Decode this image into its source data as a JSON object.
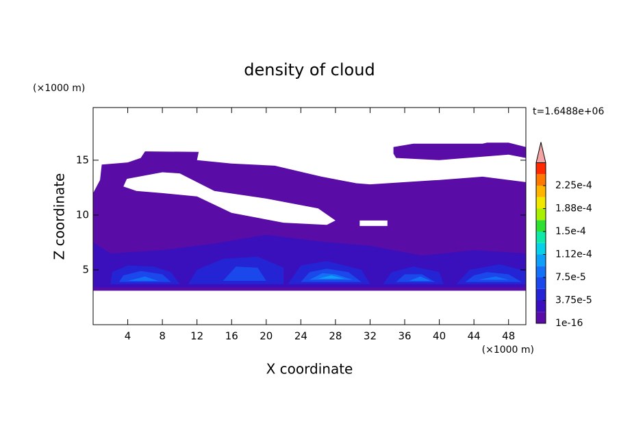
{
  "chart_data": {
    "type": "contour",
    "title": "density of cloud",
    "xlabel": "X coordinate",
    "ylabel": "Z coordinate",
    "x_unit": "(×1000 m)",
    "y_unit": "(×1000 m)",
    "annotation": "t=1.6488e+06",
    "xlim": [
      0,
      50
    ],
    "ylim": [
      0,
      19.8
    ],
    "xticks": [
      4,
      8,
      12,
      16,
      20,
      24,
      28,
      32,
      36,
      40,
      44,
      48
    ],
    "yticks": [
      5,
      10,
      15
    ],
    "colorbar": {
      "clim": [
        1e-16,
        0.0002625
      ],
      "colors": [
        "#5a0ca6",
        "#3a10bc",
        "#2424d4",
        "#1a48ea",
        "#1470f6",
        "#0ea0f8",
        "#08d0e8",
        "#10e8a8",
        "#30e030",
        "#a8f000",
        "#f0e800",
        "#ffb400",
        "#ff7800",
        "#ff2a00"
      ],
      "extend_color": "#f4a4a4",
      "ticks": [
        {
          "value": 1e-16,
          "label": "1e-16"
        },
        {
          "value": 3.75e-05,
          "label": "3.75e-5"
        },
        {
          "value": 7.5e-05,
          "label": "7.5e-5"
        },
        {
          "value": 0.0001125,
          "label": "1.12e-4"
        },
        {
          "value": 0.00015,
          "label": "1.5e-4"
        },
        {
          "value": 0.0001875,
          "label": "1.88e-4"
        },
        {
          "value": 0.000225,
          "label": "2.25e-4"
        }
      ]
    },
    "regions": [
      {
        "value": 1e-16,
        "x": [
          0,
          50,
          50,
          45,
          40,
          36,
          32,
          30.4,
          26.4,
          21,
          16,
          12,
          12.2,
          6,
          5.5,
          4,
          1,
          0.8,
          0,
          null,
          3.5,
          3.9,
          8,
          10,
          14,
          20,
          26,
          28,
          27,
          22,
          16,
          12,
          8,
          5,
          null,
          30.8,
          34,
          34,
          30.8,
          null,
          34.7,
          37,
          45,
          45.5,
          48,
          50,
          50,
          48,
          40,
          35,
          34.7
        ],
        "z": [
          3.1,
          3.1,
          13,
          13.5,
          13.2,
          13,
          12.8,
          12.9,
          13.5,
          14.5,
          14.7,
          15,
          15.75,
          15.8,
          15.2,
          14.8,
          14.6,
          13.2,
          12,
          null,
          12.6,
          13.3,
          13.9,
          13.8,
          12.2,
          11.5,
          10.6,
          9.5,
          9.1,
          9.3,
          10.2,
          11.7,
          12,
          12.2,
          null,
          9.5,
          9.5,
          9.0,
          9.0,
          null,
          16.2,
          16.5,
          16.5,
          16.6,
          16.6,
          16.2,
          15.2,
          15.5,
          15,
          15.2,
          15.6
        ]
      },
      {
        "value": 1.875e-05,
        "x": [
          0,
          50,
          50,
          44,
          38,
          32,
          26,
          20,
          14,
          8,
          2,
          0
        ],
        "z": [
          3.4,
          3.4,
          6.5,
          6.8,
          6.3,
          7.2,
          7.6,
          8.2,
          7.4,
          6.8,
          6.5,
          7.5
        ]
      },
      {
        "value": 3.75e-05,
        "x": [
          2,
          10,
          9,
          7,
          4,
          2.2,
          null,
          11,
          22,
          22,
          19,
          15,
          12,
          null,
          22.5,
          32,
          31,
          27,
          24,
          null,
          33.5,
          40.5,
          40,
          37,
          34.5,
          null,
          42,
          50,
          50,
          47,
          43.5
        ],
        "z": [
          3.7,
          3.7,
          4.8,
          5.3,
          5.4,
          4.8,
          null,
          3.7,
          3.7,
          5.2,
          6.2,
          6.0,
          5.0,
          null,
          3.7,
          3.7,
          5.0,
          5.8,
          5.4,
          null,
          3.7,
          3.7,
          4.8,
          5.3,
          4.8,
          null,
          3.7,
          3.7,
          4.9,
          5.5,
          5.0
        ]
      },
      {
        "value": 5.625e-05,
        "x": [
          3,
          9,
          8,
          5.5,
          3.5,
          null,
          15,
          20,
          19,
          16.5,
          null,
          24,
          31,
          29.5,
          27,
          25,
          null,
          35,
          39.5,
          38,
          36,
          null,
          43,
          49.5,
          48,
          45.5,
          44
        ],
        "z": [
          3.9,
          3.9,
          4.6,
          4.9,
          4.5,
          null,
          4.0,
          4.0,
          5.2,
          5.3,
          null,
          3.9,
          3.9,
          4.8,
          5.1,
          4.8,
          null,
          3.9,
          3.9,
          4.6,
          4.6,
          null,
          3.9,
          3.9,
          4.6,
          4.8,
          4.5
        ]
      },
      {
        "value": 7.5e-05,
        "x": [
          4,
          7.5,
          6,
          null,
          25,
          30,
          28,
          26.5,
          null,
          44.5,
          48,
          46.5,
          null,
          36.5,
          39,
          37.8
        ],
        "z": [
          4.0,
          4.0,
          4.4,
          null,
          4.1,
          4.1,
          4.6,
          4.7,
          null,
          4.1,
          4.1,
          4.4,
          null,
          4.0,
          4.0,
          4.4
        ]
      },
      {
        "value": 9.375e-05,
        "x": [
          26,
          29,
          27.5
        ],
        "z": [
          4.2,
          4.2,
          4.5
        ]
      }
    ]
  }
}
